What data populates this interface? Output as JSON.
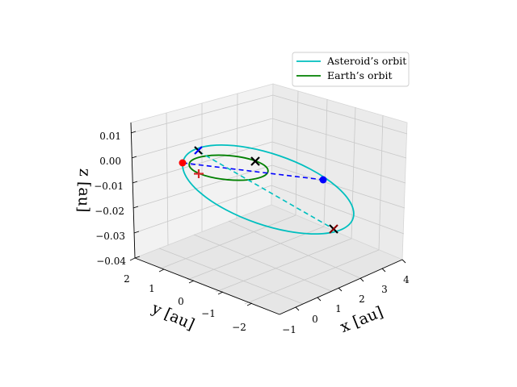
{
  "chart_data": {
    "type": "line3d",
    "title": "",
    "xlabel": "x [au]",
    "ylabel": "y [au]",
    "zlabel": "z [au]",
    "xlim": [
      -1.5,
      4.5
    ],
    "ylim": [
      -2.5,
      2.5
    ],
    "zlim": [
      -0.04,
      0.015
    ],
    "x_ticks": [
      "−1",
      "0",
      "1",
      "2",
      "3",
      "4"
    ],
    "y_ticks": [
      "2",
      "1",
      "0",
      "−1",
      "−2"
    ],
    "z_ticks": [
      "0.01",
      "0.00",
      "−0.01",
      "−0.02",
      "−0.03",
      "−0.04"
    ],
    "grid": true,
    "legend": {
      "placement": "top-right",
      "entries": [
        {
          "label": "Asteroid’s orbit",
          "color": "#00bfbf"
        },
        {
          "label": "Earth’s orbit",
          "color": "#008000"
        }
      ]
    },
    "series": [
      {
        "name": "Asteroid’s orbit",
        "color": "#00bfbf",
        "style": "solid"
      },
      {
        "name": "Earth’s orbit",
        "color": "#008000",
        "style": "solid"
      }
    ],
    "markers": [
      {
        "symbol": "circle",
        "color": "#ff0000"
      },
      {
        "symbol": "circle",
        "color": "#0000ff"
      },
      {
        "symbol": "x",
        "color": "#000000"
      },
      {
        "symbol": "x",
        "color": "#0000ff"
      },
      {
        "symbol": "x",
        "color": "#8b0000"
      },
      {
        "symbol": "plus",
        "color": "#ff0000"
      }
    ],
    "lines": [
      {
        "style": "dashed",
        "color": "#0000ff"
      },
      {
        "style": "dashed",
        "color": "#00bfbf"
      }
    ]
  }
}
